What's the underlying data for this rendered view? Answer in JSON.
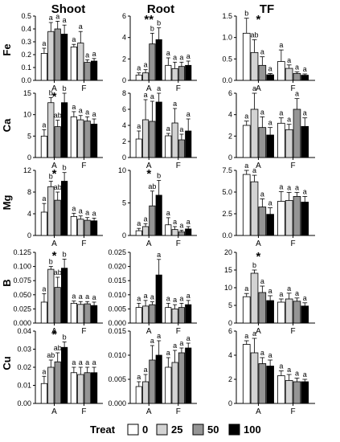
{
  "figure": {
    "column_titles": [
      "Shoot",
      "Root",
      "TF"
    ],
    "row_labels": [
      "Fe",
      "Ca",
      "Mg",
      "B",
      "Cu"
    ],
    "legend": {
      "title": "Treat",
      "items": [
        "0",
        "25",
        "50",
        "100"
      ]
    },
    "colors": {
      "0": "#ffffff",
      "25": "#d3d3d3",
      "50": "#959595",
      "100": "#000000",
      "axis": "#000000"
    }
  },
  "chart_data": [
    {
      "type": "bar",
      "row": "Fe",
      "col": "Shoot",
      "ylim": [
        0,
        0.5
      ],
      "yticks": [
        "0.0",
        "0.1",
        "0.2",
        "0.3",
        "0.4",
        "0.5"
      ],
      "categories": [
        "A",
        "F"
      ],
      "series": [
        {
          "name": "0",
          "values": [
            0.21,
            0.26
          ],
          "err": [
            0.04,
            0.02
          ],
          "letters": [
            "a",
            "a"
          ]
        },
        {
          "name": "25",
          "values": [
            0.38,
            0.29
          ],
          "err": [
            0.07,
            0.09
          ],
          "letters": [
            "a",
            "a"
          ]
        },
        {
          "name": "50",
          "values": [
            0.4,
            0.14
          ],
          "err": [
            0.06,
            0.02
          ],
          "letters": [
            "a",
            "a"
          ]
        },
        {
          "name": "100",
          "values": [
            0.36,
            0.15
          ],
          "err": [
            0.07,
            0.02
          ],
          "letters": [
            "a",
            "a"
          ]
        }
      ]
    },
    {
      "type": "bar",
      "row": "Fe",
      "col": "Root",
      "ylim": [
        0,
        6
      ],
      "yticks": [
        "0",
        "2",
        "4",
        "6"
      ],
      "categories": [
        "A",
        "F"
      ],
      "star": "**",
      "series": [
        {
          "name": "0",
          "values": [
            0.5,
            1.4
          ],
          "err": [
            0.2,
            0.7
          ],
          "letters": [
            "a",
            "a"
          ]
        },
        {
          "name": "25",
          "values": [
            0.7,
            1.1
          ],
          "err": [
            0.3,
            0.6
          ],
          "letters": [
            "a",
            "a"
          ]
        },
        {
          "name": "50",
          "values": [
            3.4,
            1.3
          ],
          "err": [
            1.0,
            0.4
          ],
          "letters": [
            "b",
            "a"
          ]
        },
        {
          "name": "100",
          "values": [
            3.8,
            1.4
          ],
          "err": [
            1.1,
            0.4
          ],
          "letters": [
            "b",
            "a"
          ]
        }
      ]
    },
    {
      "type": "bar",
      "row": "Fe",
      "col": "TF",
      "ylim": [
        0,
        1.5
      ],
      "yticks": [
        "0.0",
        "0.5",
        "1.0",
        "1.5"
      ],
      "categories": [
        "A",
        "F"
      ],
      "star": "*",
      "series": [
        {
          "name": "0",
          "values": [
            1.1,
            0.44
          ],
          "err": [
            0.35,
            0.27
          ],
          "letters": [
            "b",
            "a"
          ]
        },
        {
          "name": "25",
          "values": [
            0.65,
            0.28
          ],
          "err": [
            0.3,
            0.08
          ],
          "letters": [
            "ab",
            "a"
          ]
        },
        {
          "name": "50",
          "values": [
            0.35,
            0.16
          ],
          "err": [
            0.2,
            0.04
          ],
          "letters": [
            "a",
            "a"
          ]
        },
        {
          "name": "100",
          "values": [
            0.13,
            0.12
          ],
          "err": [
            0.03,
            0.03
          ],
          "letters": [
            "a",
            "a"
          ]
        }
      ]
    },
    {
      "type": "bar",
      "row": "Ca",
      "col": "Shoot",
      "ylim": [
        0,
        15
      ],
      "yticks": [
        "0",
        "5",
        "10",
        "15"
      ],
      "categories": [
        "A",
        "F"
      ],
      "star": "*",
      "series": [
        {
          "name": "0",
          "values": [
            5.0,
            9.5
          ],
          "err": [
            1.5,
            1.2
          ],
          "letters": [
            "a",
            "a"
          ]
        },
        {
          "name": "25",
          "values": [
            12.8,
            8.8
          ],
          "err": [
            1.2,
            1.0
          ],
          "letters": [
            "b",
            "a"
          ]
        },
        {
          "name": "50",
          "values": [
            7.2,
            8.5
          ],
          "err": [
            1.5,
            1.0
          ],
          "letters": [
            "ab",
            "a"
          ]
        },
        {
          "name": "100",
          "values": [
            12.8,
            7.8
          ],
          "err": [
            4.0,
            1.2
          ],
          "letters": [
            "b",
            "a"
          ]
        }
      ]
    },
    {
      "type": "bar",
      "row": "Ca",
      "col": "Root",
      "ylim": [
        0,
        8
      ],
      "yticks": [
        "0",
        "2",
        "4",
        "6",
        "8"
      ],
      "categories": [
        "A",
        "F"
      ],
      "series": [
        {
          "name": "0",
          "values": [
            2.3,
            2.7
          ],
          "err": [
            1.0,
            0.3
          ],
          "letters": [
            "a",
            "a"
          ]
        },
        {
          "name": "25",
          "values": [
            4.7,
            4.3
          ],
          "err": [
            2.5,
            1.8
          ],
          "letters": [
            "a",
            "a"
          ]
        },
        {
          "name": "50",
          "values": [
            4.5,
            2.2
          ],
          "err": [
            2.5,
            0.7
          ],
          "letters": [
            "a",
            "a"
          ]
        },
        {
          "name": "100",
          "values": [
            6.9,
            3.3
          ],
          "err": [
            1.6,
            1.5
          ],
          "letters": [
            "a",
            "a"
          ]
        }
      ]
    },
    {
      "type": "bar",
      "row": "Ca",
      "col": "TF",
      "ylim": [
        0,
        6
      ],
      "yticks": [
        "0",
        "2",
        "4",
        "6"
      ],
      "categories": [
        "A",
        "F"
      ],
      "series": [
        {
          "name": "0",
          "values": [
            3.0,
            3.2
          ],
          "err": [
            0.4,
            0.5
          ],
          "letters": [
            "a",
            "a"
          ]
        },
        {
          "name": "25",
          "values": [
            4.5,
            2.6
          ],
          "err": [
            1.8,
            0.5
          ],
          "letters": [
            "a",
            "a"
          ]
        },
        {
          "name": "50",
          "values": [
            2.8,
            4.5
          ],
          "err": [
            1.0,
            1.0
          ],
          "letters": [
            "a",
            "a"
          ]
        },
        {
          "name": "100",
          "values": [
            2.1,
            2.9
          ],
          "err": [
            0.7,
            0.8
          ],
          "letters": [
            "a",
            "a"
          ]
        }
      ]
    },
    {
      "type": "bar",
      "row": "Mg",
      "col": "Shoot",
      "ylim": [
        0,
        12
      ],
      "yticks": [
        "0",
        "4",
        "8",
        "12"
      ],
      "categories": [
        "A",
        "F"
      ],
      "star": "*",
      "series": [
        {
          "name": "0",
          "values": [
            4.3,
            3.5
          ],
          "err": [
            1.6,
            0.6
          ],
          "letters": [
            "a",
            "a"
          ]
        },
        {
          "name": "25",
          "values": [
            9.0,
            3.0
          ],
          "err": [
            1.0,
            0.6
          ],
          "letters": [
            "b",
            "a"
          ]
        },
        {
          "name": "50",
          "values": [
            6.5,
            2.8
          ],
          "err": [
            1.5,
            0.5
          ],
          "letters": [
            "ab",
            "a"
          ]
        },
        {
          "name": "100",
          "values": [
            10.0,
            2.7
          ],
          "err": [
            1.6,
            0.5
          ],
          "letters": [
            "b",
            "a"
          ]
        }
      ]
    },
    {
      "type": "bar",
      "row": "Mg",
      "col": "Root",
      "ylim": [
        0,
        11
      ],
      "yticks": [
        "0",
        "5",
        "10"
      ],
      "categories": [
        "A",
        "F"
      ],
      "star": "*",
      "series": [
        {
          "name": "0",
          "values": [
            0.8,
            1.8
          ],
          "err": [
            0.4,
            1.2
          ],
          "letters": [
            "a",
            "a"
          ]
        },
        {
          "name": "25",
          "values": [
            1.5,
            1.0
          ],
          "err": [
            0.5,
            0.5
          ],
          "letters": [
            "a",
            "a"
          ]
        },
        {
          "name": "50",
          "values": [
            5.0,
            0.6
          ],
          "err": [
            2.5,
            0.3
          ],
          "letters": [
            "ab",
            "a"
          ]
        },
        {
          "name": "100",
          "values": [
            6.8,
            1.1
          ],
          "err": [
            2.5,
            0.4
          ],
          "letters": [
            "b",
            "a"
          ]
        }
      ]
    },
    {
      "type": "bar",
      "row": "Mg",
      "col": "TF",
      "ylim": [
        0,
        8
      ],
      "yticks": [
        "0.0",
        "2.5",
        "5.0",
        "7.5"
      ],
      "categories": [
        "A",
        "F"
      ],
      "series": [
        {
          "name": "0",
          "values": [
            7.5,
            4.2
          ],
          "err": [
            1.2,
            1.2
          ],
          "letters": [
            "a",
            "a"
          ]
        },
        {
          "name": "25",
          "values": [
            6.6,
            4.3
          ],
          "err": [
            0.8,
            1.0
          ],
          "letters": [
            "a",
            "a"
          ]
        },
        {
          "name": "50",
          "values": [
            3.5,
            4.8
          ],
          "err": [
            1.0,
            0.5
          ],
          "letters": [
            "a",
            "a"
          ]
        },
        {
          "name": "100",
          "values": [
            2.6,
            4.1
          ],
          "err": [
            0.8,
            0.7
          ],
          "letters": [
            "a",
            "a"
          ]
        }
      ]
    },
    {
      "type": "bar",
      "row": "B",
      "col": "Shoot",
      "ylim": [
        0,
        0.125
      ],
      "yticks": [
        "0.000",
        "0.025",
        "0.050",
        "0.075",
        "0.100",
        "0.125"
      ],
      "categories": [
        "A",
        "F"
      ],
      "star": "*",
      "series": [
        {
          "name": "0",
          "values": [
            0.037,
            0.035
          ],
          "err": [
            0.015,
            0.004
          ],
          "letters": [
            "a",
            "a"
          ]
        },
        {
          "name": "25",
          "values": [
            0.095,
            0.033
          ],
          "err": [
            0.005,
            0.005
          ],
          "letters": [
            "b",
            "a"
          ]
        },
        {
          "name": "50",
          "values": [
            0.063,
            0.034
          ],
          "err": [
            0.018,
            0.004
          ],
          "letters": [
            "ab",
            "a"
          ]
        },
        {
          "name": "100",
          "values": [
            0.097,
            0.031
          ],
          "err": [
            0.016,
            0.006
          ],
          "letters": [
            "b",
            "a"
          ]
        }
      ]
    },
    {
      "type": "bar",
      "row": "B",
      "col": "Root",
      "ylim": [
        0,
        0.025
      ],
      "yticks": [
        "0.000",
        "0.005",
        "0.010",
        "0.015",
        "0.020",
        "0.025"
      ],
      "categories": [
        "A",
        "F"
      ],
      "series": [
        {
          "name": "0",
          "values": [
            0.0055,
            0.0055
          ],
          "err": [
            0.0015,
            0.0015
          ],
          "letters": [
            "a",
            "a"
          ]
        },
        {
          "name": "25",
          "values": [
            0.006,
            0.005
          ],
          "err": [
            0.002,
            0.0015
          ],
          "letters": [
            "a",
            "a"
          ]
        },
        {
          "name": "50",
          "values": [
            0.0065,
            0.0055
          ],
          "err": [
            0.001,
            0.0015
          ],
          "letters": [
            "a",
            "a"
          ]
        },
        {
          "name": "100",
          "values": [
            0.017,
            0.0065
          ],
          "err": [
            0.0055,
            0.0015
          ],
          "letters": [
            "a",
            "a"
          ]
        }
      ]
    },
    {
      "type": "bar",
      "row": "B",
      "col": "TF",
      "ylim": [
        0,
        22
      ],
      "yticks": [
        "0",
        "5",
        "10",
        "15",
        "20"
      ],
      "categories": [
        "A",
        "F"
      ],
      "star": "*",
      "series": [
        {
          "name": "0",
          "values": [
            8.2,
            6.5
          ],
          "err": [
            1.0,
            1.0
          ],
          "letters": [
            "a",
            "a"
          ]
        },
        {
          "name": "25",
          "values": [
            15.5,
            7.5
          ],
          "err": [
            1.0,
            1.8
          ],
          "letters": [
            "b",
            "a"
          ]
        },
        {
          "name": "50",
          "values": [
            9.5,
            6.8
          ],
          "err": [
            2.0,
            1.0
          ],
          "letters": [
            "a",
            "a"
          ]
        },
        {
          "name": "100",
          "values": [
            7.0,
            5.3
          ],
          "err": [
            1.5,
            1.0
          ],
          "letters": [
            "a",
            "a"
          ]
        }
      ]
    },
    {
      "type": "bar",
      "row": "Cu",
      "col": "Shoot",
      "ylim": [
        0,
        0.04
      ],
      "yticks": [
        "0.00",
        "0.01",
        "0.02",
        "0.03",
        "0.04"
      ],
      "categories": [
        "A",
        "F"
      ],
      "star": "*",
      "series": [
        {
          "name": "0",
          "values": [
            0.011,
            0.017
          ],
          "err": [
            0.004,
            0.003
          ],
          "letters": [
            "a",
            "a"
          ]
        },
        {
          "name": "25",
          "values": [
            0.02,
            0.016
          ],
          "err": [
            0.004,
            0.004
          ],
          "letters": [
            "ab",
            "a"
          ]
        },
        {
          "name": "50",
          "values": [
            0.023,
            0.017
          ],
          "err": [
            0.005,
            0.003
          ],
          "letters": [
            "ab",
            "a"
          ]
        },
        {
          "name": "100",
          "values": [
            0.031,
            0.017
          ],
          "err": [
            0.003,
            0.003
          ],
          "letters": [
            "b",
            "a"
          ]
        }
      ]
    },
    {
      "type": "bar",
      "row": "Cu",
      "col": "Root",
      "ylim": [
        0,
        0.015
      ],
      "yticks": [
        "0.000",
        "0.005",
        "0.010",
        "0.015"
      ],
      "categories": [
        "A",
        "F"
      ],
      "series": [
        {
          "name": "0",
          "values": [
            0.0035,
            0.0075
          ],
          "err": [
            0.001,
            0.002
          ],
          "letters": [
            "a",
            "a"
          ]
        },
        {
          "name": "25",
          "values": [
            0.0045,
            0.0085
          ],
          "err": [
            0.0015,
            0.0025
          ],
          "letters": [
            "a",
            "a"
          ]
        },
        {
          "name": "50",
          "values": [
            0.009,
            0.0105
          ],
          "err": [
            0.003,
            0.001
          ],
          "letters": [
            "a",
            "a"
          ]
        },
        {
          "name": "100",
          "values": [
            0.01,
            0.0115
          ],
          "err": [
            0.003,
            0.001
          ],
          "letters": [
            "a",
            "a"
          ]
        }
      ]
    },
    {
      "type": "bar",
      "row": "Cu",
      "col": "TF",
      "ylim": [
        0,
        6
      ],
      "yticks": [
        "0",
        "2",
        "4",
        "6"
      ],
      "categories": [
        "A",
        "F"
      ],
      "series": [
        {
          "name": "0",
          "values": [
            4.9,
            2.3
          ],
          "err": [
            0.3,
            0.4
          ],
          "letters": [
            "a",
            "a"
          ]
        },
        {
          "name": "25",
          "values": [
            4.2,
            1.9
          ],
          "err": [
            1.2,
            0.5
          ],
          "letters": [
            "a",
            "a"
          ]
        },
        {
          "name": "50",
          "values": [
            3.3,
            1.8
          ],
          "err": [
            0.5,
            0.3
          ],
          "letters": [
            "a",
            "a"
          ]
        },
        {
          "name": "100",
          "values": [
            3.1,
            1.8
          ],
          "err": [
            0.5,
            0.2
          ],
          "letters": [
            "a",
            "a"
          ]
        }
      ]
    }
  ]
}
